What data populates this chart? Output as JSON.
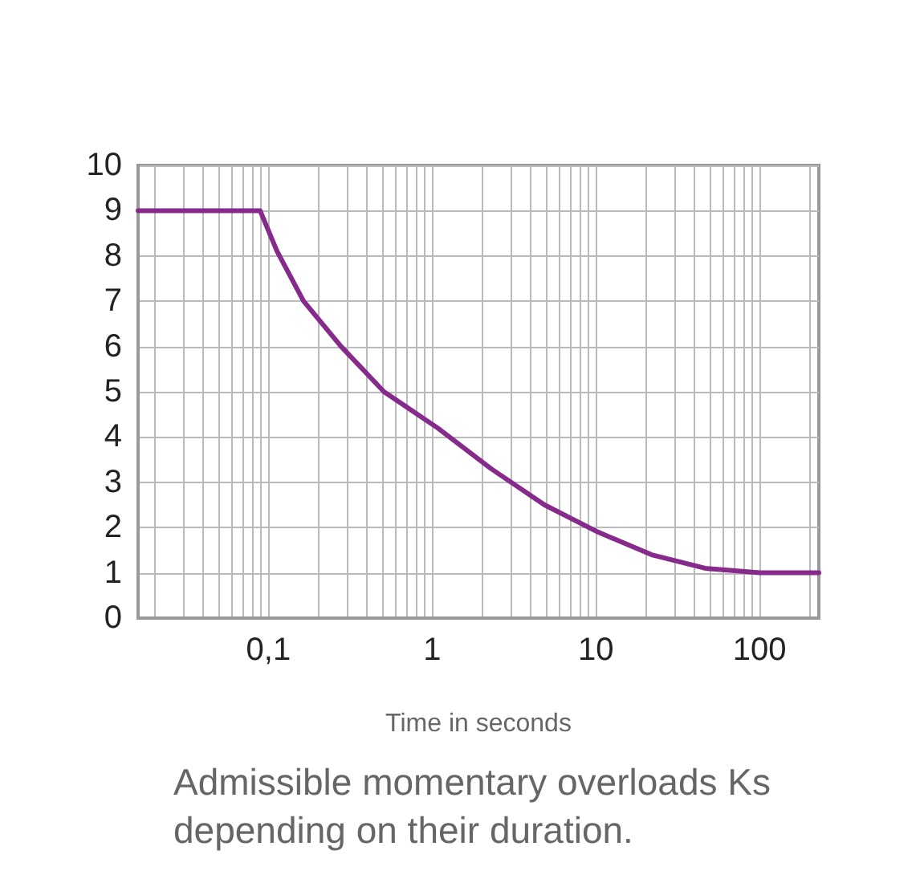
{
  "chart_data": {
    "type": "line",
    "xlabel": "Time in seconds",
    "annotations": [
      "Admissible momentary overloads Ks depending on their duration."
    ],
    "x": [
      0.016,
      0.089,
      0.113,
      0.164,
      0.278,
      0.508,
      1.08,
      2.29,
      4.86,
      10.3,
      21.9,
      46.5,
      100,
      230
    ],
    "series": [
      {
        "color": "#862a8c",
        "values": [
          9,
          9,
          8.1,
          7.0,
          6.0,
          5.0,
          4.2,
          3.3,
          2.5,
          1.9,
          1.4,
          1.1,
          1.0,
          1.0
        ]
      }
    ],
    "log": "x",
    "xlim": [
      0.016,
      230
    ],
    "xticks": [
      {
        "value": 0.02,
        "label": null
      },
      {
        "value": 0.03,
        "label": null
      },
      {
        "value": 0.04,
        "label": null
      },
      {
        "value": 0.05,
        "label": null
      },
      {
        "value": 0.06,
        "label": null
      },
      {
        "value": 0.07,
        "label": null
      },
      {
        "value": 0.08,
        "label": null
      },
      {
        "value": 0.09,
        "label": null
      },
      {
        "value": 0.1,
        "label": "0,1"
      },
      {
        "value": 0.2,
        "label": null
      },
      {
        "value": 0.3,
        "label": null
      },
      {
        "value": 0.4,
        "label": null
      },
      {
        "value": 0.5,
        "label": null
      },
      {
        "value": 0.6,
        "label": null
      },
      {
        "value": 0.7,
        "label": null
      },
      {
        "value": 0.8,
        "label": null
      },
      {
        "value": 0.9,
        "label": null
      },
      1,
      {
        "value": 2,
        "label": null
      },
      {
        "value": 3,
        "label": null
      },
      {
        "value": 4,
        "label": null
      },
      {
        "value": 5,
        "label": null
      },
      {
        "value": 6,
        "label": null
      },
      {
        "value": 7,
        "label": null
      },
      {
        "value": 8,
        "label": null
      },
      {
        "value": 9,
        "label": null
      },
      10,
      {
        "value": 20,
        "label": null
      },
      {
        "value": 30,
        "label": null
      },
      {
        "value": 40,
        "label": null
      },
      {
        "value": 50,
        "label": null
      },
      {
        "value": 60,
        "label": null
      },
      {
        "value": 70,
        "label": null
      },
      {
        "value": 80,
        "label": null
      },
      {
        "value": 90,
        "label": null
      },
      100,
      {
        "value": 200,
        "label": null
      }
    ],
    "ylim": [
      0,
      10
    ],
    "yticks": [
      0,
      1,
      2,
      3,
      4,
      5,
      6,
      7,
      8,
      9,
      10
    ],
    "grid": true,
    "marker": "none",
    "line_style": "solid"
  }
}
